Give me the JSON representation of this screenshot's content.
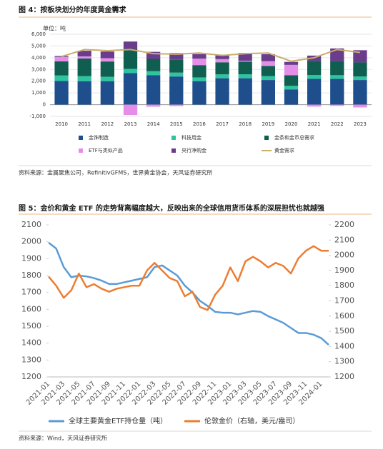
{
  "chart_data": [
    {
      "type": "bar",
      "stacked": true,
      "title": "图 4：按板块划分的年度黄金需求",
      "unit_label": "单位：吨",
      "source": "资料来源：金属聚焦公司，RefinitivGFMS，世界黄金协会，天风证券研究所",
      "categories": [
        "2010",
        "2011",
        "2012",
        "2013",
        "2014",
        "2015",
        "2016",
        "2017",
        "2018",
        "2019",
        "2020",
        "2021",
        "2022",
        "2023"
      ],
      "series": [
        {
          "name": "金饰制造",
          "color": "#1f4e8c",
          "values": [
            2020,
            2000,
            2000,
            2700,
            2500,
            2400,
            2000,
            2250,
            2250,
            2100,
            1300,
            2200,
            2200,
            2100
          ]
        },
        {
          "name": "科技用金",
          "color": "#2ec4a0",
          "values": [
            465,
            430,
            380,
            350,
            350,
            330,
            320,
            330,
            335,
            330,
            300,
            330,
            310,
            300
          ]
        },
        {
          "name": "金条和金币总需求",
          "color": "#0f5e4f",
          "values": [
            1200,
            1500,
            1300,
            1700,
            1050,
            1090,
            1050,
            1030,
            1090,
            870,
            900,
            1200,
            1200,
            1200
          ]
        },
        {
          "name": "ETF与类似产品",
          "color": "#e58ee8",
          "values": [
            382,
            185,
            280,
            -880,
            -180,
            -130,
            550,
            270,
            70,
            400,
            890,
            -170,
            -110,
            -240
          ]
        },
        {
          "name": "央行净购金",
          "color": "#6a3d8c",
          "values": [
            79,
            481,
            569,
            629,
            600,
            580,
            390,
            380,
            660,
            600,
            255,
            450,
            1080,
            1040
          ]
        },
        {
          "name": "黄金需求",
          "type": "line",
          "color": "#c9ae6a",
          "values": [
            4100,
            4700,
            4600,
            4700,
            4350,
            4300,
            4400,
            4200,
            4350,
            4400,
            3700,
            4000,
            4700,
            4450
          ]
        }
      ],
      "ylim": [
        -1000,
        6000
      ],
      "yticks": [
        {
          "value": -1000,
          "label": "-1,000"
        },
        0,
        {
          "value": 1000,
          "label": "1,000"
        },
        {
          "value": 2000,
          "label": "2,000"
        },
        {
          "value": 3000,
          "label": "3,000"
        },
        {
          "value": 4000,
          "label": "4,000"
        },
        {
          "value": 5000,
          "label": "5,000"
        },
        {
          "value": 6000,
          "label": "6,000"
        }
      ]
    },
    {
      "type": "line",
      "title": "图 5：金价和黄金 ETF 的走势背离幅度越大，反映出来的全球信用货币体系的深层担忧也就越强",
      "source": "资料来源：Wind，天风证券研究所",
      "x": [
        "2021-01",
        "2021-02",
        "2021-03",
        "2021-04",
        "2021-05",
        "2021-06",
        "2021-07",
        "2021-08",
        "2021-09",
        "2021-10",
        "2021-11",
        "2021-12",
        "2022-01",
        "2022-02",
        "2022-03",
        "2022-04",
        "2022-05",
        "2022-06",
        "2022-07",
        "2022-08",
        "2022-09",
        "2022-10",
        "2022-11",
        "2022-12",
        "2023-01",
        "2023-02",
        "2023-03",
        "2023-04",
        "2023-05",
        "2023-06",
        "2023-07",
        "2023-08",
        "2023-09",
        "2023-10",
        "2023-11",
        "2023-12",
        "2024-01",
        "2024-02"
      ],
      "xticks": [
        "2021-01",
        "2021-03",
        "2021-05",
        "2021-07",
        "2021-09",
        "2021-11",
        "2022-01",
        "2022-03",
        "2022-05",
        "2022-07",
        "2022-09",
        "2022-11",
        "2023-01",
        "2023-03",
        "2023-05",
        "2023-07",
        "2023-09",
        "2023-11",
        "2024-01"
      ],
      "series": [
        {
          "name": "全球主要黄金ETF持仓量（吨）",
          "color": "#5b9bd5",
          "values": [
            1995,
            1960,
            1850,
            1790,
            1800,
            1795,
            1785,
            1770,
            1750,
            1750,
            1760,
            1770,
            1780,
            1790,
            1850,
            1860,
            1830,
            1800,
            1740,
            1700,
            1650,
            1620,
            1585,
            1580,
            1580,
            1570,
            1580,
            1590,
            1585,
            1560,
            1540,
            1520,
            1490,
            1460,
            1460,
            1450,
            1430,
            1390
          ]
        },
        {
          "name": "伦敦金价（右轴，美元/盎司）",
          "color": "#ed7d31",
          "axis": "y2",
          "values": [
            1860,
            1800,
            1720,
            1770,
            1880,
            1790,
            1810,
            1780,
            1760,
            1780,
            1790,
            1800,
            1800,
            1900,
            1950,
            1900,
            1850,
            1830,
            1730,
            1760,
            1660,
            1640,
            1740,
            1800,
            1920,
            1830,
            1960,
            1990,
            1960,
            1920,
            1950,
            1930,
            1880,
            1980,
            2030,
            2060,
            2030,
            2030
          ]
        }
      ],
      "ylim": [
        1200,
        2100
      ],
      "yticks": [
        1200,
        1300,
        1400,
        1500,
        1600,
        1700,
        1800,
        1900,
        2000,
        2100
      ],
      "y2lim": [
        1200,
        2200
      ],
      "y2ticks": [
        1200,
        1300,
        1400,
        1500,
        1600,
        1700,
        1800,
        1900,
        2000,
        2100,
        2200
      ]
    }
  ]
}
